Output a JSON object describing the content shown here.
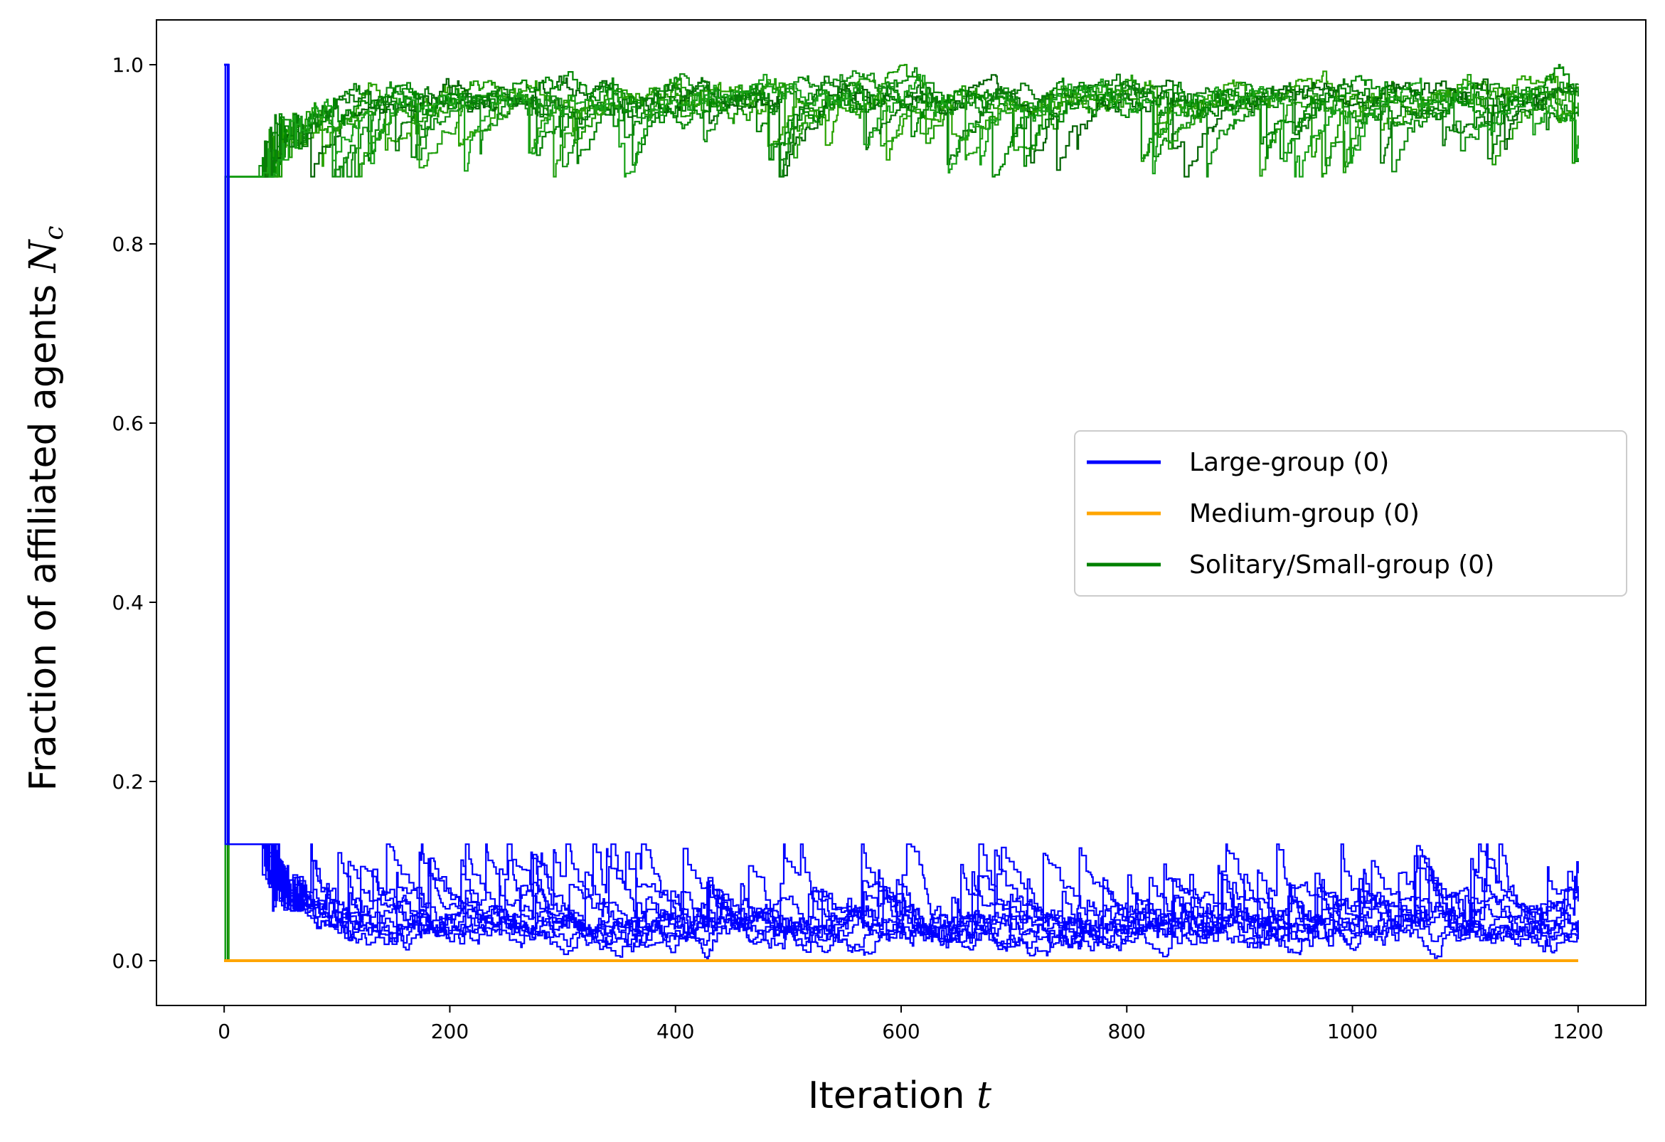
{
  "chart_data": {
    "type": "line",
    "title": "",
    "xlabel": {
      "text": "Iteration ",
      "symbol": "t"
    },
    "ylabel": {
      "text": "Fraction of affiliated agents ",
      "symbol": "N",
      "subscript": "c"
    },
    "xlim": [
      -60,
      1260
    ],
    "ylim": [
      -0.05,
      1.05
    ],
    "x_ticks": [
      0,
      200,
      400,
      600,
      800,
      1000,
      1200
    ],
    "y_ticks": [
      0.0,
      0.2,
      0.4,
      0.6,
      0.8,
      1.0
    ],
    "x_tick_labels": [
      "0",
      "200",
      "400",
      "600",
      "800",
      "1000",
      "1200"
    ],
    "y_tick_labels": [
      "0.0",
      "0.2",
      "0.4",
      "0.6",
      "0.8",
      "1.0"
    ],
    "grid": false,
    "legend_position": "center-right",
    "x_max": 1200,
    "series": [
      {
        "name": "Large-group (0)",
        "color": "#0000ff",
        "runs": 10,
        "initial": 1.0,
        "settle_iteration": 50,
        "steady_mean": 0.035,
        "steady_range": [
          0.0,
          0.13
        ],
        "final": 0.01
      },
      {
        "name": "Medium-group (0)",
        "color": "#ffa500",
        "runs": 10,
        "initial": 0.0,
        "steady_mean": 0.0,
        "final": 0.0
      },
      {
        "name": "Solitary/Small-group (0)",
        "color": "#008000",
        "run_colors": [
          "#008000",
          "#1a9a00",
          "#0c8a0c",
          "#2aa300",
          "#006400",
          "#139013",
          "#22a010",
          "#008800",
          "#0a7a0a",
          "#18a218"
        ],
        "runs": 10,
        "initial": 0.0,
        "settle_iteration": 50,
        "steady_mean": 0.965,
        "steady_range": [
          0.875,
          1.0
        ],
        "final": 0.99
      }
    ]
  }
}
